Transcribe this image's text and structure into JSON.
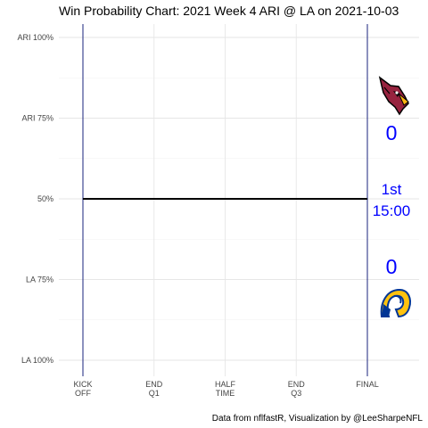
{
  "chart_data": {
    "type": "line",
    "title": "Win Probability Chart: 2021 Week 4 ARI @ LA on 2021-10-03",
    "caption": "Data from nflfastR, Visualization by @LeeSharpeNFL",
    "x_ticks": [
      {
        "value": 0,
        "lines": [
          "KICK",
          "OFF"
        ]
      },
      {
        "value": 15,
        "lines": [
          "END",
          "Q1"
        ]
      },
      {
        "value": 30,
        "lines": [
          "HALF",
          "TIME"
        ]
      },
      {
        "value": 45,
        "lines": [
          "END",
          "Q3"
        ]
      },
      {
        "value": 60,
        "lines": [
          "FINAL"
        ]
      }
    ],
    "xlim": [
      0,
      60
    ],
    "y_ticks": [
      {
        "value": 1.0,
        "label": "ARI 100%"
      },
      {
        "value": 0.75,
        "label": "ARI 75%"
      },
      {
        "value": 0.5,
        "label": "50%"
      },
      {
        "value": 0.25,
        "label": "LA 75%"
      },
      {
        "value": 0.0,
        "label": "LA 100%"
      }
    ],
    "ylim": [
      0,
      1
    ],
    "grid": true,
    "series": [
      {
        "x": [
          0,
          60
        ],
        "y": [
          0.5,
          0.5
        ],
        "color": "#000000"
      }
    ],
    "vlines": [
      0,
      60
    ],
    "vline_color": "#1a237e",
    "away": {
      "team": "ARI",
      "score": "0",
      "logo": "cardinal-logo",
      "color": "#97233f"
    },
    "home": {
      "team": "LA",
      "score": "0",
      "logo": "rams-horn-logo",
      "color": "#003594",
      "accent": "#ffc20e"
    },
    "game_clock": {
      "quarter": "1st",
      "time": "15:00"
    },
    "text_color": "#0000ff"
  }
}
